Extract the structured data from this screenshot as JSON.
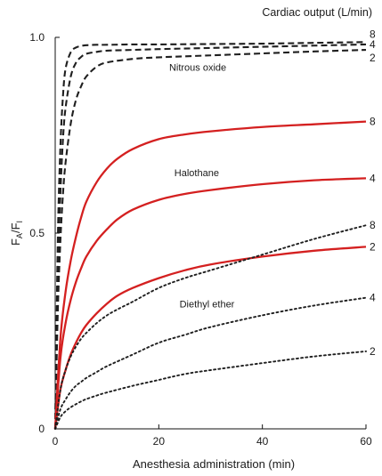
{
  "chart_data": {
    "type": "line",
    "title": "",
    "header": "Cardiac output (L/min)",
    "xlabel": "Anesthesia administration (min)",
    "ylabel": {
      "main": "F",
      "sub1": "A",
      "slash": "/F",
      "sub2": "I"
    },
    "xlim": [
      0,
      60
    ],
    "ylim": [
      0,
      1.0
    ],
    "x_ticks": [
      0,
      20,
      40,
      60
    ],
    "x_tick_labels": [
      "0",
      "20",
      "40",
      "60"
    ],
    "y_ticks": [
      0,
      0.5,
      1.0
    ],
    "y_tick_labels": [
      "0",
      "0.5",
      "1.0"
    ],
    "grid": false,
    "groups": [
      {
        "label": "Nitrous oxide",
        "label_at": [
          22,
          0.915
        ],
        "style": "dashed",
        "color": "#1f1f1f",
        "series": [
          {
            "name": "8",
            "x": [
              0,
              0.5,
              1,
              1.5,
              2,
              3,
              4,
              5,
              6,
              8,
              10,
              15,
              20,
              30,
              40,
              50,
              60
            ],
            "y": [
              0,
              0.48,
              0.72,
              0.85,
              0.92,
              0.962,
              0.974,
              0.978,
              0.98,
              0.981,
              0.981,
              0.982,
              0.982,
              0.983,
              0.984,
              0.986,
              0.988
            ]
          },
          {
            "name": "4",
            "x": [
              0,
              0.5,
              1,
              1.5,
              2,
              3,
              4,
              5,
              6,
              8,
              10,
              15,
              20,
              30,
              40,
              50,
              60
            ],
            "y": [
              0,
              0.38,
              0.6,
              0.74,
              0.82,
              0.9,
              0.935,
              0.95,
              0.958,
              0.963,
              0.966,
              0.968,
              0.97,
              0.973,
              0.976,
              0.979,
              0.982
            ]
          },
          {
            "name": "2",
            "x": [
              0,
              0.5,
              1,
              1.5,
              2,
              3,
              4,
              5,
              6,
              8,
              10,
              15,
              20,
              30,
              40,
              50,
              60
            ],
            "y": [
              0,
              0.3,
              0.48,
              0.6,
              0.68,
              0.78,
              0.84,
              0.875,
              0.9,
              0.925,
              0.936,
              0.945,
              0.949,
              0.954,
              0.959,
              0.964,
              0.968
            ]
          }
        ],
        "end_labels": [
          "8",
          "4",
          "2"
        ]
      },
      {
        "label": "Halothane",
        "label_at": [
          23,
          0.645
        ],
        "style": "solid",
        "color": "#d42020",
        "series": [
          {
            "name": "8",
            "x": [
              0,
              1,
              2,
              3,
              4,
              5,
              6,
              8,
              10,
              12,
              15,
              20,
              25,
              30,
              40,
              50,
              60
            ],
            "y": [
              0,
              0.23,
              0.35,
              0.43,
              0.49,
              0.54,
              0.58,
              0.63,
              0.665,
              0.69,
              0.715,
              0.74,
              0.752,
              0.76,
              0.771,
              0.778,
              0.785
            ]
          },
          {
            "name": "4",
            "x": [
              0,
              1,
              2,
              3,
              4,
              5,
              6,
              8,
              10,
              12,
              15,
              20,
              25,
              30,
              40,
              50,
              60
            ],
            "y": [
              0,
              0.18,
              0.27,
              0.33,
              0.375,
              0.41,
              0.44,
              0.48,
              0.51,
              0.535,
              0.56,
              0.585,
              0.6,
              0.61,
              0.625,
              0.635,
              0.64
            ]
          },
          {
            "name": "2",
            "x": [
              0,
              1,
              2,
              3,
              4,
              5,
              6,
              8,
              10,
              12,
              15,
              20,
              25,
              30,
              40,
              50,
              60
            ],
            "y": [
              0,
              0.1,
              0.15,
              0.19,
              0.22,
              0.245,
              0.265,
              0.295,
              0.32,
              0.34,
              0.36,
              0.385,
              0.405,
              0.42,
              0.44,
              0.455,
              0.465
            ]
          }
        ],
        "end_labels": [
          "8",
          "4",
          "2"
        ]
      },
      {
        "label": "Diethyl ether",
        "label_at": [
          24,
          0.31
        ],
        "style": "dotted",
        "color": "#1f1f1f",
        "series": [
          {
            "name": "8",
            "x": [
              0,
              1,
              2,
              3,
              4,
              5,
              6,
              8,
              10,
              12,
              15,
              20,
              25,
              30,
              40,
              50,
              60
            ],
            "y": [
              0,
              0.1,
              0.15,
              0.185,
              0.21,
              0.23,
              0.245,
              0.27,
              0.29,
              0.305,
              0.325,
              0.36,
              0.385,
              0.405,
              0.445,
              0.485,
              0.52
            ]
          },
          {
            "name": "4",
            "x": [
              0,
              1,
              2,
              3,
              4,
              5,
              6,
              8,
              10,
              15,
              20,
              25,
              30,
              40,
              50,
              60
            ],
            "y": [
              0,
              0.05,
              0.075,
              0.095,
              0.11,
              0.12,
              0.13,
              0.145,
              0.16,
              0.19,
              0.22,
              0.24,
              0.26,
              0.29,
              0.315,
              0.335
            ]
          },
          {
            "name": "2",
            "x": [
              0,
              1,
              2,
              3,
              4,
              5,
              6,
              8,
              10,
              15,
              20,
              25,
              30,
              40,
              50,
              60
            ],
            "y": [
              0,
              0.03,
              0.045,
              0.055,
              0.063,
              0.07,
              0.076,
              0.085,
              0.093,
              0.11,
              0.125,
              0.14,
              0.15,
              0.168,
              0.185,
              0.198
            ]
          }
        ],
        "end_labels": [
          "8",
          "4",
          "2"
        ]
      }
    ]
  }
}
